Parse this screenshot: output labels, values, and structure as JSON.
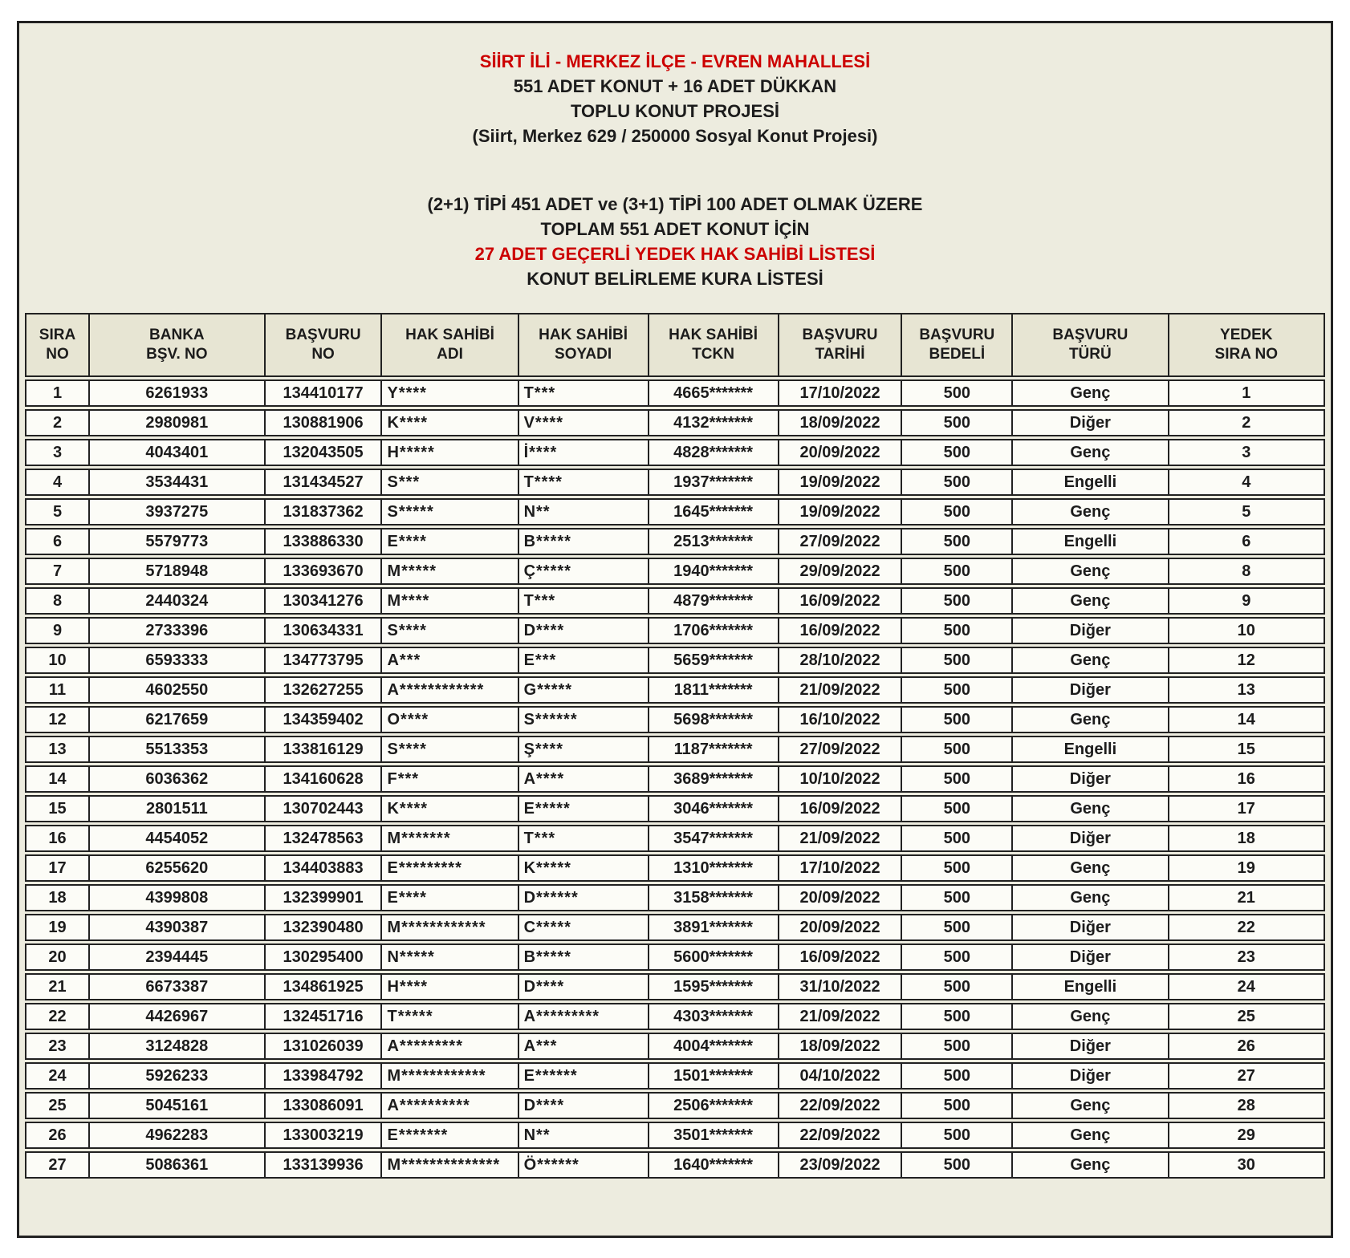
{
  "document": {
    "colors": {
      "accent_red": "#cc0000",
      "sheet_background": "#edecdf",
      "cell_background": "#fcfcf7",
      "header_cell_background": "#e7e5d3",
      "border": "#222222",
      "text": "#1c1c1c"
    },
    "title_block": {
      "location_line": "SİİRT İLİ - MERKEZ İLÇE - EVREN MAHALLESİ",
      "units_line": "551 ADET KONUT + 16 ADET DÜKKAN",
      "project_line": "TOPLU KONUT PROJESİ",
      "project_code_line": "(Siirt, Merkez 629 / 250000 Sosyal Konut Projesi)",
      "type_breakdown_line": "(2+1) TİPİ 451 ADET ve (3+1) TİPİ 100 ADET OLMAK ÜZERE",
      "total_line": "TOPLAM 551 ADET KONUT İÇİN",
      "reserve_list_line": "27 ADET GEÇERLİ YEDEK HAK SAHİBİ LİSTESİ",
      "lottery_line": "KONUT BELİRLEME KURA LİSTESİ"
    },
    "table": {
      "headers": [
        "SIRA\nNO",
        "BANKA\nBŞV. NO",
        "BAŞVURU\nNO",
        "HAK SAHİBİ\nADI",
        "HAK SAHİBİ\nSOYADI",
        "HAK SAHİBİ\nTCKN",
        "BAŞVURU\nTARİHİ",
        "BAŞVURU\nBEDELİ",
        "BAŞVURU\nTÜRÜ",
        "YEDEK\nSIRA NO"
      ],
      "rows": [
        [
          "1",
          "6261933",
          "134410177",
          "Y****",
          "T***",
          "4665*******",
          "17/10/2022",
          "500",
          "Genç",
          "1"
        ],
        [
          "2",
          "2980981",
          "130881906",
          "K****",
          "V****",
          "4132*******",
          "18/09/2022",
          "500",
          "Diğer",
          "2"
        ],
        [
          "3",
          "4043401",
          "132043505",
          "H*****",
          "İ****",
          "4828*******",
          "20/09/2022",
          "500",
          "Genç",
          "3"
        ],
        [
          "4",
          "3534431",
          "131434527",
          "S***",
          "T****",
          "1937*******",
          "19/09/2022",
          "500",
          "Engelli",
          "4"
        ],
        [
          "5",
          "3937275",
          "131837362",
          "S*****",
          "N**",
          "1645*******",
          "19/09/2022",
          "500",
          "Genç",
          "5"
        ],
        [
          "6",
          "5579773",
          "133886330",
          "E****",
          "B*****",
          "2513*******",
          "27/09/2022",
          "500",
          "Engelli",
          "6"
        ],
        [
          "7",
          "5718948",
          "133693670",
          "M*****",
          "Ç*****",
          "1940*******",
          "29/09/2022",
          "500",
          "Genç",
          "8"
        ],
        [
          "8",
          "2440324",
          "130341276",
          "M****",
          "T***",
          "4879*******",
          "16/09/2022",
          "500",
          "Genç",
          "9"
        ],
        [
          "9",
          "2733396",
          "130634331",
          "S****",
          "D****",
          "1706*******",
          "16/09/2022",
          "500",
          "Diğer",
          "10"
        ],
        [
          "10",
          "6593333",
          "134773795",
          "A***",
          "E***",
          "5659*******",
          "28/10/2022",
          "500",
          "Genç",
          "12"
        ],
        [
          "11",
          "4602550",
          "132627255",
          "A************",
          "G*****",
          "1811*******",
          "21/09/2022",
          "500",
          "Diğer",
          "13"
        ],
        [
          "12",
          "6217659",
          "134359402",
          "O****",
          "S******",
          "5698*******",
          "16/10/2022",
          "500",
          "Genç",
          "14"
        ],
        [
          "13",
          "5513353",
          "133816129",
          "S****",
          "Ş****",
          "1187*******",
          "27/09/2022",
          "500",
          "Engelli",
          "15"
        ],
        [
          "14",
          "6036362",
          "134160628",
          "F***",
          "A****",
          "3689*******",
          "10/10/2022",
          "500",
          "Diğer",
          "16"
        ],
        [
          "15",
          "2801511",
          "130702443",
          "K****",
          "E*****",
          "3046*******",
          "16/09/2022",
          "500",
          "Genç",
          "17"
        ],
        [
          "16",
          "4454052",
          "132478563",
          "M*******",
          "T***",
          "3547*******",
          "21/09/2022",
          "500",
          "Diğer",
          "18"
        ],
        [
          "17",
          "6255620",
          "134403883",
          "E*********",
          "K*****",
          "1310*******",
          "17/10/2022",
          "500",
          "Genç",
          "19"
        ],
        [
          "18",
          "4399808",
          "132399901",
          "E****",
          "D******",
          "3158*******",
          "20/09/2022",
          "500",
          "Genç",
          "21"
        ],
        [
          "19",
          "4390387",
          "132390480",
          "M************",
          "C*****",
          "3891*******",
          "20/09/2022",
          "500",
          "Diğer",
          "22"
        ],
        [
          "20",
          "2394445",
          "130295400",
          "N*****",
          "B*****",
          "5600*******",
          "16/09/2022",
          "500",
          "Diğer",
          "23"
        ],
        [
          "21",
          "6673387",
          "134861925",
          "H****",
          "D****",
          "1595*******",
          "31/10/2022",
          "500",
          "Engelli",
          "24"
        ],
        [
          "22",
          "4426967",
          "132451716",
          "T*****",
          "A*********",
          "4303*******",
          "21/09/2022",
          "500",
          "Genç",
          "25"
        ],
        [
          "23",
          "3124828",
          "131026039",
          "A*********",
          "A***",
          "4004*******",
          "18/09/2022",
          "500",
          "Diğer",
          "26"
        ],
        [
          "24",
          "5926233",
          "133984792",
          "M************",
          "E******",
          "1501*******",
          "04/10/2022",
          "500",
          "Diğer",
          "27"
        ],
        [
          "25",
          "5045161",
          "133086091",
          "A**********",
          "D****",
          "2506*******",
          "22/09/2022",
          "500",
          "Genç",
          "28"
        ],
        [
          "26",
          "4962283",
          "133003219",
          "E*******",
          "N**",
          "3501*******",
          "22/09/2022",
          "500",
          "Genç",
          "29"
        ],
        [
          "27",
          "5086361",
          "133139936",
          "M**************",
          "Ö******",
          "1640*******",
          "23/09/2022",
          "500",
          "Genç",
          "30"
        ]
      ]
    }
  }
}
